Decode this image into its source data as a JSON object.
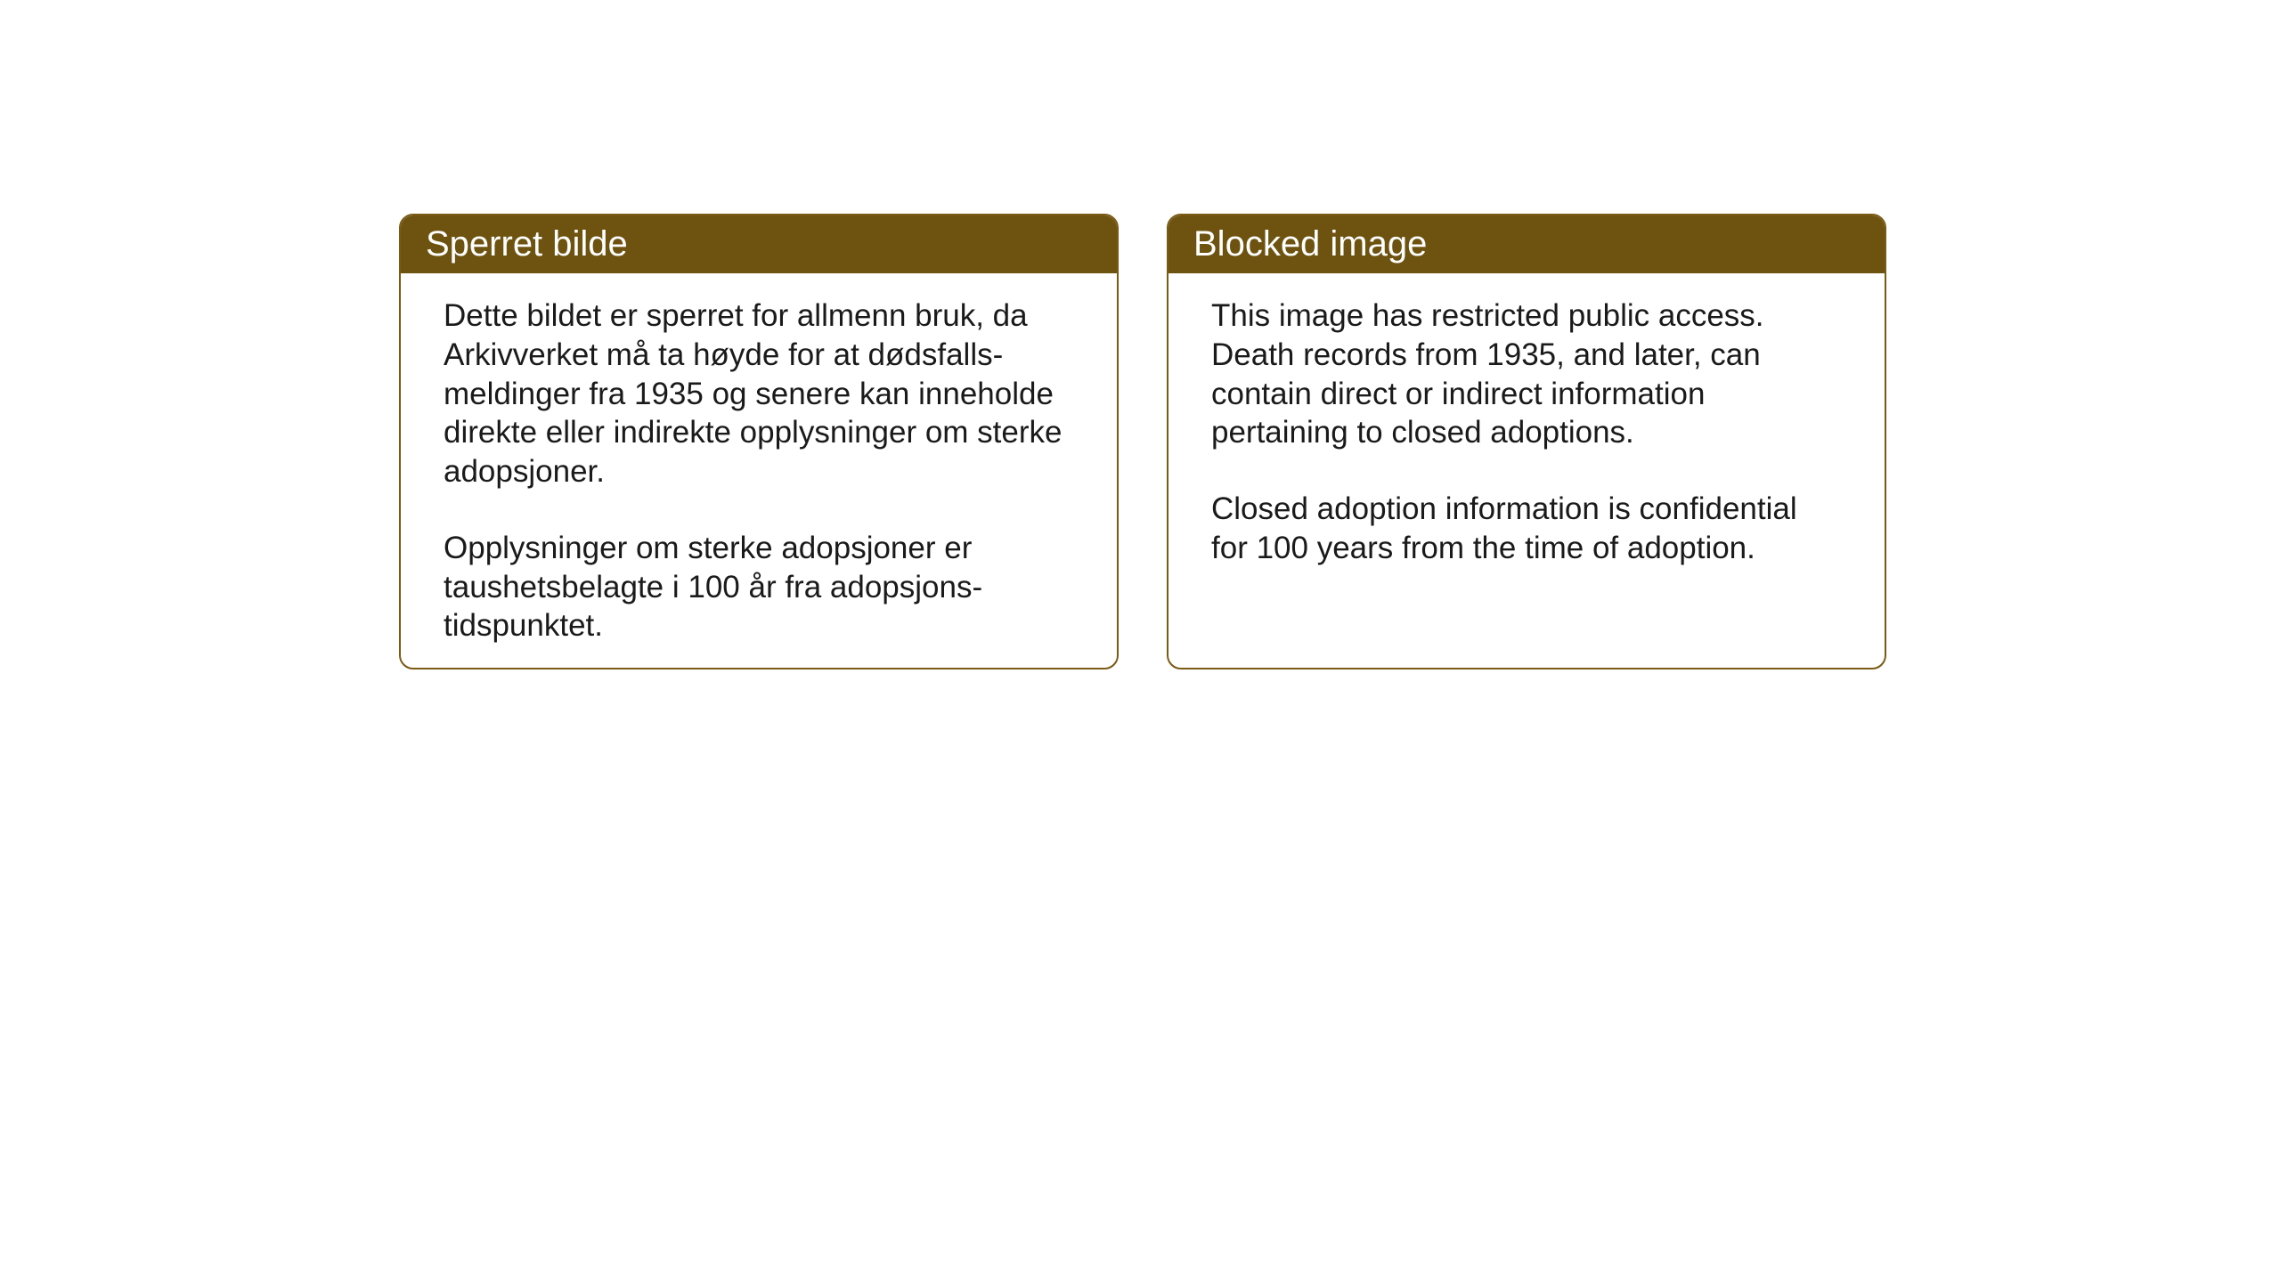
{
  "layout": {
    "background_color": "#ffffff",
    "box_border_color": "#7a5a14",
    "box_border_radius": 16,
    "header_bg_color": "#6e5210",
    "header_text_color": "#ffffff",
    "body_text_color": "#1a1a1a",
    "header_font_size": 40,
    "body_font_size": 35
  },
  "notices": {
    "norwegian": {
      "title": "Sperret bilde",
      "paragraph1": "Dette bildet er sperret for allmenn bruk, da Arkivverket må ta høyde for at dødsfalls-meldinger fra 1935 og senere kan inneholde direkte eller indirekte opplysninger om sterke adopsjoner.",
      "paragraph2": "Opplysninger om sterke adopsjoner er taushetsbelagte i 100 år fra adopsjons-tidspunktet."
    },
    "english": {
      "title": "Blocked image",
      "paragraph1": "This image has restricted public access. Death records from 1935, and later, can contain direct or indirect information pertaining to closed adoptions.",
      "paragraph2": "Closed adoption information is confidential for 100 years from the time of adoption."
    }
  }
}
